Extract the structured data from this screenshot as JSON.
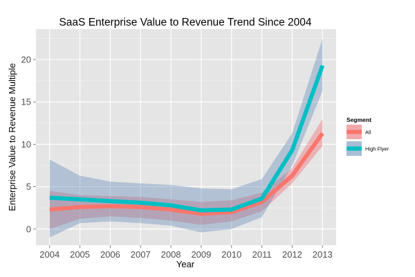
{
  "chart_data": {
    "type": "line",
    "title": "SaaS Enterprise Value to Revenue Trend Since 2004",
    "xlabel": "Year",
    "ylabel": "Enterprise Value to Revenue Multiple",
    "x": [
      2004,
      2005,
      2006,
      2007,
      2008,
      2009,
      2010,
      2011,
      2012,
      2013
    ],
    "xlim": [
      2003.55,
      2013.45
    ],
    "ylim": [
      -1.9,
      23.6
    ],
    "yticks": [
      0,
      5,
      10,
      15,
      20
    ],
    "grid": true,
    "legend_position": "right",
    "legend_title": "Segment",
    "series": [
      {
        "name": "All",
        "color": "#F8766D",
        "values": [
          2.3,
          2.6,
          2.7,
          2.6,
          2.3,
          1.8,
          2.0,
          3.2,
          6.3,
          11.3
        ],
        "lower": [
          0.0,
          1.2,
          1.5,
          1.3,
          1.0,
          0.5,
          0.9,
          2.1,
          5.4,
          9.8
        ],
        "upper": [
          4.5,
          4.0,
          3.9,
          3.8,
          3.5,
          3.2,
          3.4,
          4.3,
          7.2,
          13.0
        ]
      },
      {
        "name": "High Flyer",
        "color": "#00BFC4",
        "values": [
          3.7,
          3.5,
          3.3,
          3.1,
          2.8,
          2.2,
          2.3,
          3.6,
          9.3,
          19.3
        ],
        "lower": [
          -1.0,
          0.7,
          0.9,
          0.7,
          0.4,
          -0.4,
          0.0,
          1.4,
          7.5,
          16.3
        ],
        "upper": [
          8.2,
          6.3,
          5.6,
          5.4,
          5.2,
          4.8,
          4.7,
          5.9,
          11.3,
          22.5
        ]
      }
    ]
  }
}
